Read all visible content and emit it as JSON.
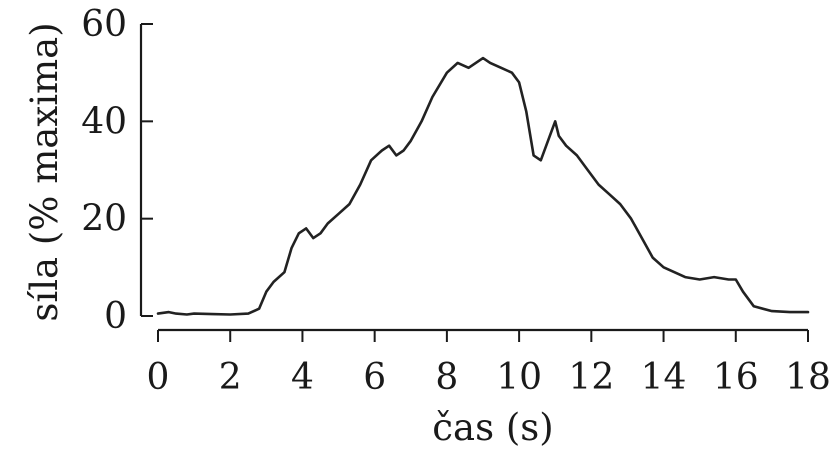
{
  "chart_data": {
    "type": "line",
    "title": "",
    "xlabel": "čas (s)",
    "ylabel": "síla (% maxima)",
    "xlim": [
      0,
      18
    ],
    "ylim": [
      0,
      60
    ],
    "x_ticks": [
      0,
      2,
      4,
      6,
      8,
      10,
      12,
      14,
      16,
      18
    ],
    "y_ticks": [
      0,
      20,
      40,
      60
    ],
    "grid": false,
    "line_color": "#222222",
    "series": [
      {
        "x": [
          0,
          0.3,
          0.5,
          0.8,
          1.0,
          1.5,
          2.0,
          2.5,
          2.8,
          3.0,
          3.2,
          3.5,
          3.7,
          3.9,
          4.1,
          4.3,
          4.5,
          4.7,
          5.0,
          5.3,
          5.6,
          5.9,
          6.2,
          6.4,
          6.6,
          6.8,
          7.0,
          7.3,
          7.6,
          8.0,
          8.3,
          8.6,
          8.8,
          9.0,
          9.2,
          9.5,
          9.8,
          10.0,
          10.2,
          10.4,
          10.6,
          10.8,
          11.0,
          11.1,
          11.3,
          11.6,
          11.9,
          12.2,
          12.5,
          12.8,
          13.1,
          13.4,
          13.7,
          14.0,
          14.3,
          14.6,
          15.0,
          15.4,
          15.8,
          16.0,
          16.2,
          16.5,
          17.0,
          17.5,
          18.0
        ],
        "values": [
          0.5,
          0.8,
          0.5,
          0.3,
          0.5,
          0.4,
          0.3,
          0.5,
          1.5,
          5,
          7,
          9,
          14,
          17,
          18,
          16,
          17,
          19,
          21,
          23,
          27,
          32,
          34,
          35,
          33,
          34,
          36,
          40,
          45,
          50,
          52,
          51,
          52,
          53,
          52,
          51,
          50,
          48,
          42,
          33,
          32,
          36,
          40,
          37,
          35,
          33,
          30,
          27,
          25,
          23,
          20,
          16,
          12,
          10,
          9,
          8,
          7.5,
          8,
          7.5,
          7.5,
          5,
          2,
          1,
          0.8,
          0.8
        ]
      }
    ]
  }
}
